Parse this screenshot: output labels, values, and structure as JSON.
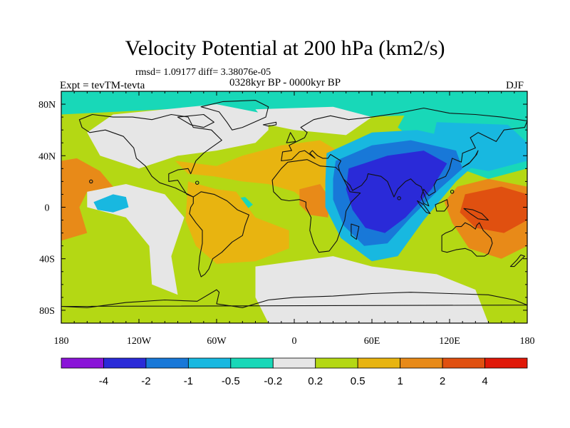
{
  "chart_data": {
    "type": "heatmap",
    "title": "Velocity Potential at 200 hPa (km2/s)",
    "stats": "rmsd= 1.09177 diff= 3.38076e-05",
    "left_label": "Expt = tevTM-tevta",
    "center_label": "0328kyr BP - 0000kyr BP",
    "right_label": "DJF",
    "x_ticks": [
      "180",
      "120W",
      "60W",
      "0",
      "60E",
      "120E",
      "180"
    ],
    "y_ticks": [
      "80N",
      "40N",
      "0",
      "40S",
      "80S"
    ],
    "xlim": [
      -180,
      180
    ],
    "ylim": [
      -90,
      90
    ],
    "colorbar": {
      "levels": [
        "-4",
        "-2",
        "-1",
        "-0.5",
        "-0.2",
        "0.2",
        "0.5",
        "1",
        "2",
        "4"
      ],
      "colors": [
        "#8a14d8",
        "#2a2ad8",
        "#1878d8",
        "#18b8e0",
        "#18d8b8",
        "#e6e6e6",
        "#b4d814",
        "#e8b410",
        "#e88a18",
        "#e05010",
        "#e01808"
      ]
    },
    "regions": [
      {
        "name": "eastern-hemisphere-trough",
        "level_index": 1,
        "lon": 72,
        "lat": 2
      },
      {
        "name": "west-pacific-ridge",
        "level_index": 9,
        "lon": 150,
        "lat": 2
      },
      {
        "name": "east-pacific-ridge",
        "level_index": 8,
        "lon": -160,
        "lat": 8
      },
      {
        "name": "atlantic-ridge",
        "level_index": 7,
        "lon": -30,
        "lat": 30
      },
      {
        "name": "south-america-ridge",
        "level_index": 7,
        "lon": -55,
        "lat": -20
      },
      {
        "name": "central-africa-ridge",
        "level_index": 8,
        "lon": 18,
        "lat": 5
      }
    ]
  }
}
